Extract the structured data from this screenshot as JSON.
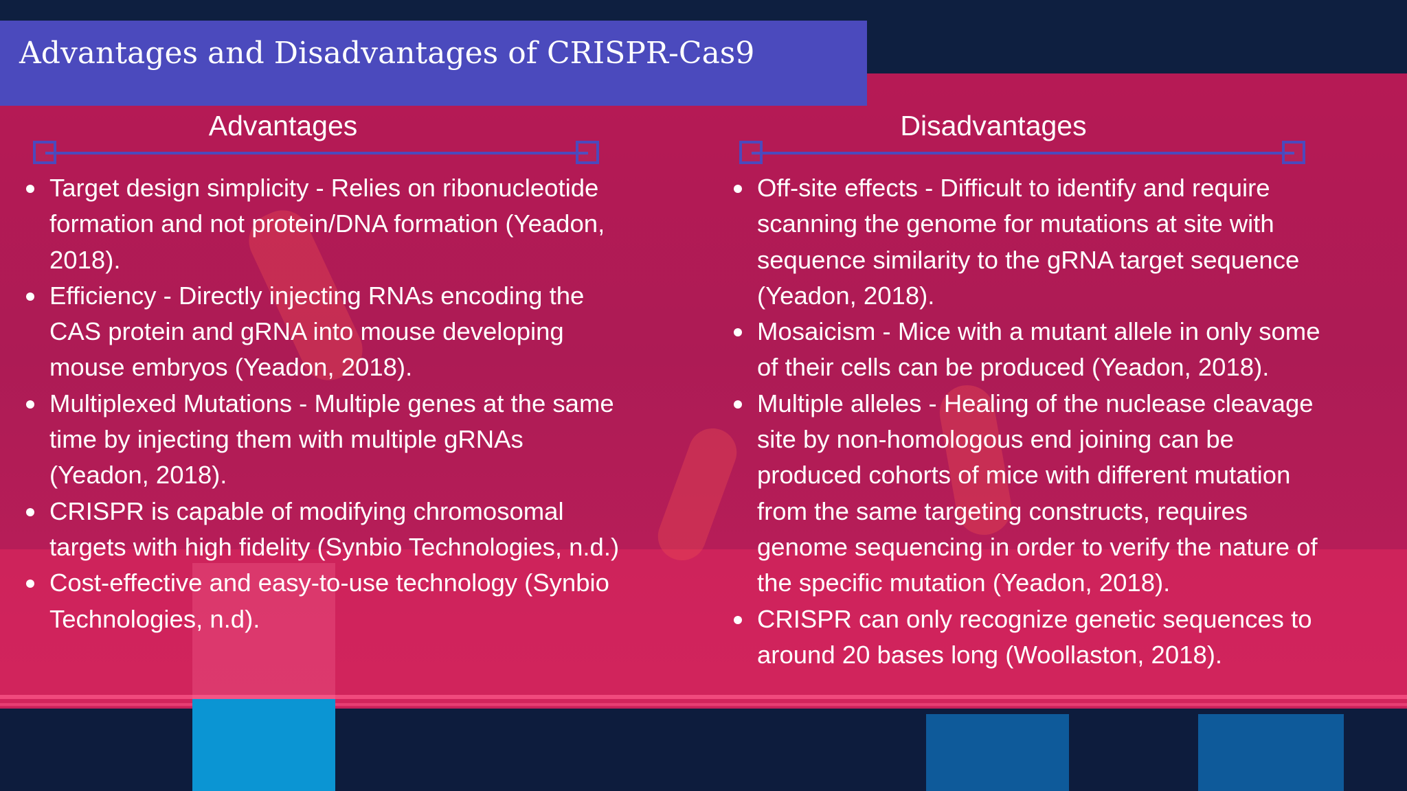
{
  "title": "Advantages and Disadvantages  of CRISPR-Cas9",
  "advantages": {
    "heading": "Advantages",
    "items": [
      "Target design simplicity - Relies on ribonucleotide formation and not protein/DNA formation (Yeadon, 2018).",
      "Efficiency - Directly injecting RNAs encoding the CAS protein and gRNA into mouse developing mouse embryos (Yeadon, 2018).",
      "Multiplexed Mutations - Multiple genes at the same time by injecting them with multiple gRNAs (Yeadon, 2018).",
      "CRISPR is capable of modifying chromosomal targets with high fidelity (Synbio Technologies, n.d.)",
      "Cost-effective and easy-to-use technology (Synbio Technologies, n.d)."
    ]
  },
  "disadvantages": {
    "heading": "Disadvantages",
    "items": [
      "Off-site effects - Difficult to identify and require scanning the genome for mutations at site with sequence similarity to the gRNA target sequence (Yeadon, 2018).",
      "Mosaicism - Mice with a mutant allele in only some of their cells can be produced (Yeadon, 2018).",
      "Multiple alleles - Healing of the nuclease cleavage site by non-homologous end joining can be produced cohorts of mice with different mutation from the same targeting constructs, requires genome sequencing in order to verify the nature of the specific mutation (Yeadon, 2018).",
      "CRISPR can only recognize genetic sequences to around 20 bases long (Woollaston, 2018)."
    ]
  },
  "colors": {
    "title_bar": "#4b4abd",
    "background": "#b61a55",
    "navy": "#0e1f40",
    "text": "#ffffff"
  }
}
